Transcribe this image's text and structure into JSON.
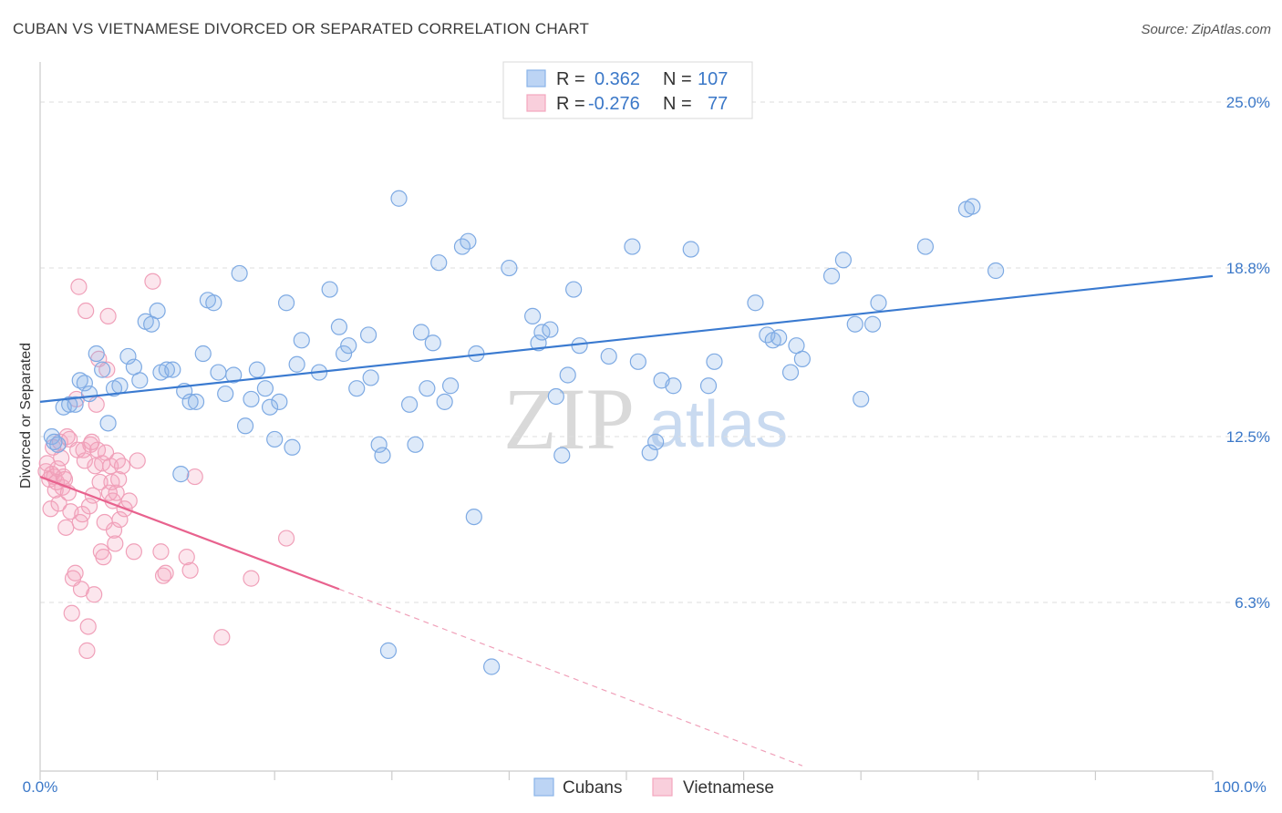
{
  "header": {
    "title": "CUBAN VS VIETNAMESE DIVORCED OR SEPARATED CORRELATION CHART",
    "source": "Source: ZipAtlas.com"
  },
  "watermark": {
    "zip": "ZIP",
    "atlas": "atlas"
  },
  "legend": {
    "rows": [
      {
        "r_label": "R =",
        "r_value": "0.362",
        "n_label": "N =",
        "n_value": "107",
        "color": "#8ab4e8"
      },
      {
        "r_label": "R =",
        "r_value": "-0.276",
        "n_label": "N =",
        "n_value": "77",
        "color": "#f4a6bd"
      }
    ]
  },
  "bottom_legend": {
    "items": [
      {
        "label": "Cubans",
        "color": "#8ab4e8"
      },
      {
        "label": "Vietnamese",
        "color": "#f4a6bd"
      }
    ]
  },
  "chart_data": {
    "type": "scatter",
    "title": "CUBAN VS VIETNAMESE DIVORCED OR SEPARATED CORRELATION CHART",
    "ylabel": "Divorced or Separated",
    "xlabel": "",
    "xlim": [
      0,
      100
    ],
    "ylim": [
      0,
      26.5
    ],
    "x_tick_labels": [
      "0.0%",
      "100.0%"
    ],
    "y_ticks": [
      6.3,
      12.5,
      18.8,
      25.0
    ],
    "y_tick_labels": [
      "6.3%",
      "12.5%",
      "18.8%",
      "25.0%"
    ],
    "grid": "horizontal dashed",
    "legend_position": "top-center",
    "colors": {
      "cubans": "#3a7ad0",
      "vietnamese": "#e8628e",
      "grid": "#dddddd",
      "axis_label": "#3b78c8"
    },
    "series": [
      {
        "name": "Cubans",
        "color": "#8ab4e8",
        "trend": {
          "x": [
            0,
            100
          ],
          "y": [
            13.8,
            18.5
          ]
        },
        "points": [
          [
            1.0,
            12.5
          ],
          [
            1.2,
            12.3
          ],
          [
            1.5,
            12.2
          ],
          [
            2.0,
            13.6
          ],
          [
            2.5,
            13.7
          ],
          [
            3.0,
            13.7
          ],
          [
            3.4,
            14.6
          ],
          [
            3.8,
            14.5
          ],
          [
            4.2,
            14.1
          ],
          [
            4.8,
            15.6
          ],
          [
            5.3,
            15.0
          ],
          [
            5.8,
            13.0
          ],
          [
            6.3,
            14.3
          ],
          [
            6.8,
            14.4
          ],
          [
            7.5,
            15.5
          ],
          [
            8.0,
            15.1
          ],
          [
            8.5,
            14.6
          ],
          [
            9.0,
            16.8
          ],
          [
            9.5,
            16.7
          ],
          [
            10.0,
            17.2
          ],
          [
            10.3,
            14.9
          ],
          [
            10.8,
            15.0
          ],
          [
            11.3,
            15.0
          ],
          [
            12.0,
            11.1
          ],
          [
            12.3,
            14.2
          ],
          [
            12.8,
            13.8
          ],
          [
            13.3,
            13.8
          ],
          [
            13.9,
            15.6
          ],
          [
            14.3,
            17.6
          ],
          [
            14.8,
            17.5
          ],
          [
            15.2,
            14.9
          ],
          [
            15.8,
            14.1
          ],
          [
            16.5,
            14.8
          ],
          [
            17.0,
            18.6
          ],
          [
            17.5,
            12.9
          ],
          [
            18.0,
            13.9
          ],
          [
            18.5,
            15.0
          ],
          [
            19.2,
            14.3
          ],
          [
            19.6,
            13.6
          ],
          [
            20.0,
            12.4
          ],
          [
            20.4,
            13.8
          ],
          [
            21.0,
            17.5
          ],
          [
            21.5,
            12.1
          ],
          [
            21.9,
            15.2
          ],
          [
            22.3,
            16.1
          ],
          [
            23.8,
            14.9
          ],
          [
            24.7,
            18.0
          ],
          [
            25.5,
            16.6
          ],
          [
            25.9,
            15.6
          ],
          [
            26.3,
            15.9
          ],
          [
            27.0,
            14.3
          ],
          [
            28.0,
            16.3
          ],
          [
            28.2,
            14.7
          ],
          [
            28.9,
            12.2
          ],
          [
            29.2,
            11.8
          ],
          [
            29.7,
            4.5
          ],
          [
            30.6,
            21.4
          ],
          [
            31.5,
            13.7
          ],
          [
            32.0,
            12.2
          ],
          [
            32.5,
            16.4
          ],
          [
            33.0,
            14.3
          ],
          [
            33.5,
            16.0
          ],
          [
            34.0,
            19.0
          ],
          [
            34.5,
            13.8
          ],
          [
            35.0,
            14.4
          ],
          [
            36.0,
            19.6
          ],
          [
            36.5,
            19.8
          ],
          [
            37.0,
            9.5
          ],
          [
            37.2,
            15.6
          ],
          [
            38.5,
            3.9
          ],
          [
            40.0,
            18.8
          ],
          [
            42.0,
            17.0
          ],
          [
            42.5,
            16.0
          ],
          [
            42.8,
            16.4
          ],
          [
            43.5,
            16.5
          ],
          [
            44.0,
            14.0
          ],
          [
            44.5,
            11.8
          ],
          [
            45.0,
            14.8
          ],
          [
            45.5,
            18.0
          ],
          [
            46.0,
            15.9
          ],
          [
            48.5,
            15.5
          ],
          [
            50.5,
            19.6
          ],
          [
            51.0,
            15.3
          ],
          [
            52.0,
            11.9
          ],
          [
            52.5,
            12.3
          ],
          [
            53.0,
            14.6
          ],
          [
            54.0,
            14.4
          ],
          [
            55.5,
            19.5
          ],
          [
            57.0,
            14.4
          ],
          [
            57.5,
            15.3
          ],
          [
            61.0,
            17.5
          ],
          [
            62.0,
            16.3
          ],
          [
            62.5,
            16.1
          ],
          [
            63.0,
            16.2
          ],
          [
            64.0,
            14.9
          ],
          [
            64.5,
            15.9
          ],
          [
            65.0,
            15.4
          ],
          [
            67.5,
            18.5
          ],
          [
            68.5,
            19.1
          ],
          [
            69.5,
            16.7
          ],
          [
            70.0,
            13.9
          ],
          [
            71.0,
            16.7
          ],
          [
            71.5,
            17.5
          ],
          [
            75.5,
            19.6
          ],
          [
            79.0,
            21.0
          ],
          [
            79.5,
            21.1
          ],
          [
            81.5,
            18.7
          ]
        ]
      },
      {
        "name": "Vietnamese",
        "color": "#f4a6bd",
        "trend": {
          "x": [
            0,
            25.5
          ],
          "y": [
            11.0,
            6.8
          ]
        },
        "trend_dashed": {
          "x": [
            25.5,
            65
          ],
          "y": [
            6.8,
            0.2
          ]
        },
        "points": [
          [
            0.5,
            11.2
          ],
          [
            0.6,
            11.5
          ],
          [
            0.8,
            10.9
          ],
          [
            0.9,
            9.8
          ],
          [
            1.0,
            11.1
          ],
          [
            1.1,
            12.1
          ],
          [
            1.2,
            11.0
          ],
          [
            1.3,
            10.5
          ],
          [
            1.4,
            10.8
          ],
          [
            1.5,
            11.3
          ],
          [
            1.6,
            10.0
          ],
          [
            1.7,
            12.3
          ],
          [
            1.8,
            11.7
          ],
          [
            1.9,
            10.6
          ],
          [
            2.0,
            11.0
          ],
          [
            2.1,
            10.9
          ],
          [
            2.2,
            9.1
          ],
          [
            2.3,
            12.5
          ],
          [
            2.4,
            10.4
          ],
          [
            2.5,
            12.4
          ],
          [
            2.6,
            9.7
          ],
          [
            2.7,
            5.9
          ],
          [
            2.8,
            7.2
          ],
          [
            3.0,
            7.4
          ],
          [
            3.1,
            13.9
          ],
          [
            3.2,
            12.0
          ],
          [
            3.3,
            18.1
          ],
          [
            3.4,
            9.3
          ],
          [
            3.5,
            6.8
          ],
          [
            3.6,
            9.6
          ],
          [
            3.7,
            12.0
          ],
          [
            3.8,
            11.6
          ],
          [
            3.9,
            17.2
          ],
          [
            4.0,
            4.5
          ],
          [
            4.1,
            5.4
          ],
          [
            4.2,
            9.9
          ],
          [
            4.3,
            12.2
          ],
          [
            4.4,
            12.3
          ],
          [
            4.5,
            10.3
          ],
          [
            4.6,
            6.6
          ],
          [
            4.7,
            11.4
          ],
          [
            4.8,
            13.7
          ],
          [
            4.9,
            12.0
          ],
          [
            5.0,
            15.4
          ],
          [
            5.1,
            10.8
          ],
          [
            5.2,
            8.2
          ],
          [
            5.3,
            11.5
          ],
          [
            5.4,
            8.0
          ],
          [
            5.5,
            9.3
          ],
          [
            5.6,
            11.9
          ],
          [
            5.7,
            15.0
          ],
          [
            5.8,
            17.0
          ],
          [
            5.9,
            10.4
          ],
          [
            6.0,
            11.4
          ],
          [
            6.1,
            10.8
          ],
          [
            6.2,
            10.1
          ],
          [
            6.3,
            9.0
          ],
          [
            6.4,
            8.5
          ],
          [
            6.5,
            10.4
          ],
          [
            6.6,
            11.6
          ],
          [
            6.7,
            10.9
          ],
          [
            6.8,
            9.4
          ],
          [
            7.0,
            11.4
          ],
          [
            7.2,
            9.8
          ],
          [
            7.6,
            10.1
          ],
          [
            8.0,
            8.2
          ],
          [
            8.3,
            11.6
          ],
          [
            9.6,
            18.3
          ],
          [
            10.3,
            8.2
          ],
          [
            10.5,
            7.3
          ],
          [
            10.7,
            7.4
          ],
          [
            12.5,
            8.0
          ],
          [
            12.8,
            7.5
          ],
          [
            13.2,
            11.0
          ],
          [
            15.5,
            5.0
          ],
          [
            18.0,
            7.2
          ],
          [
            21.0,
            8.7
          ]
        ]
      }
    ]
  }
}
